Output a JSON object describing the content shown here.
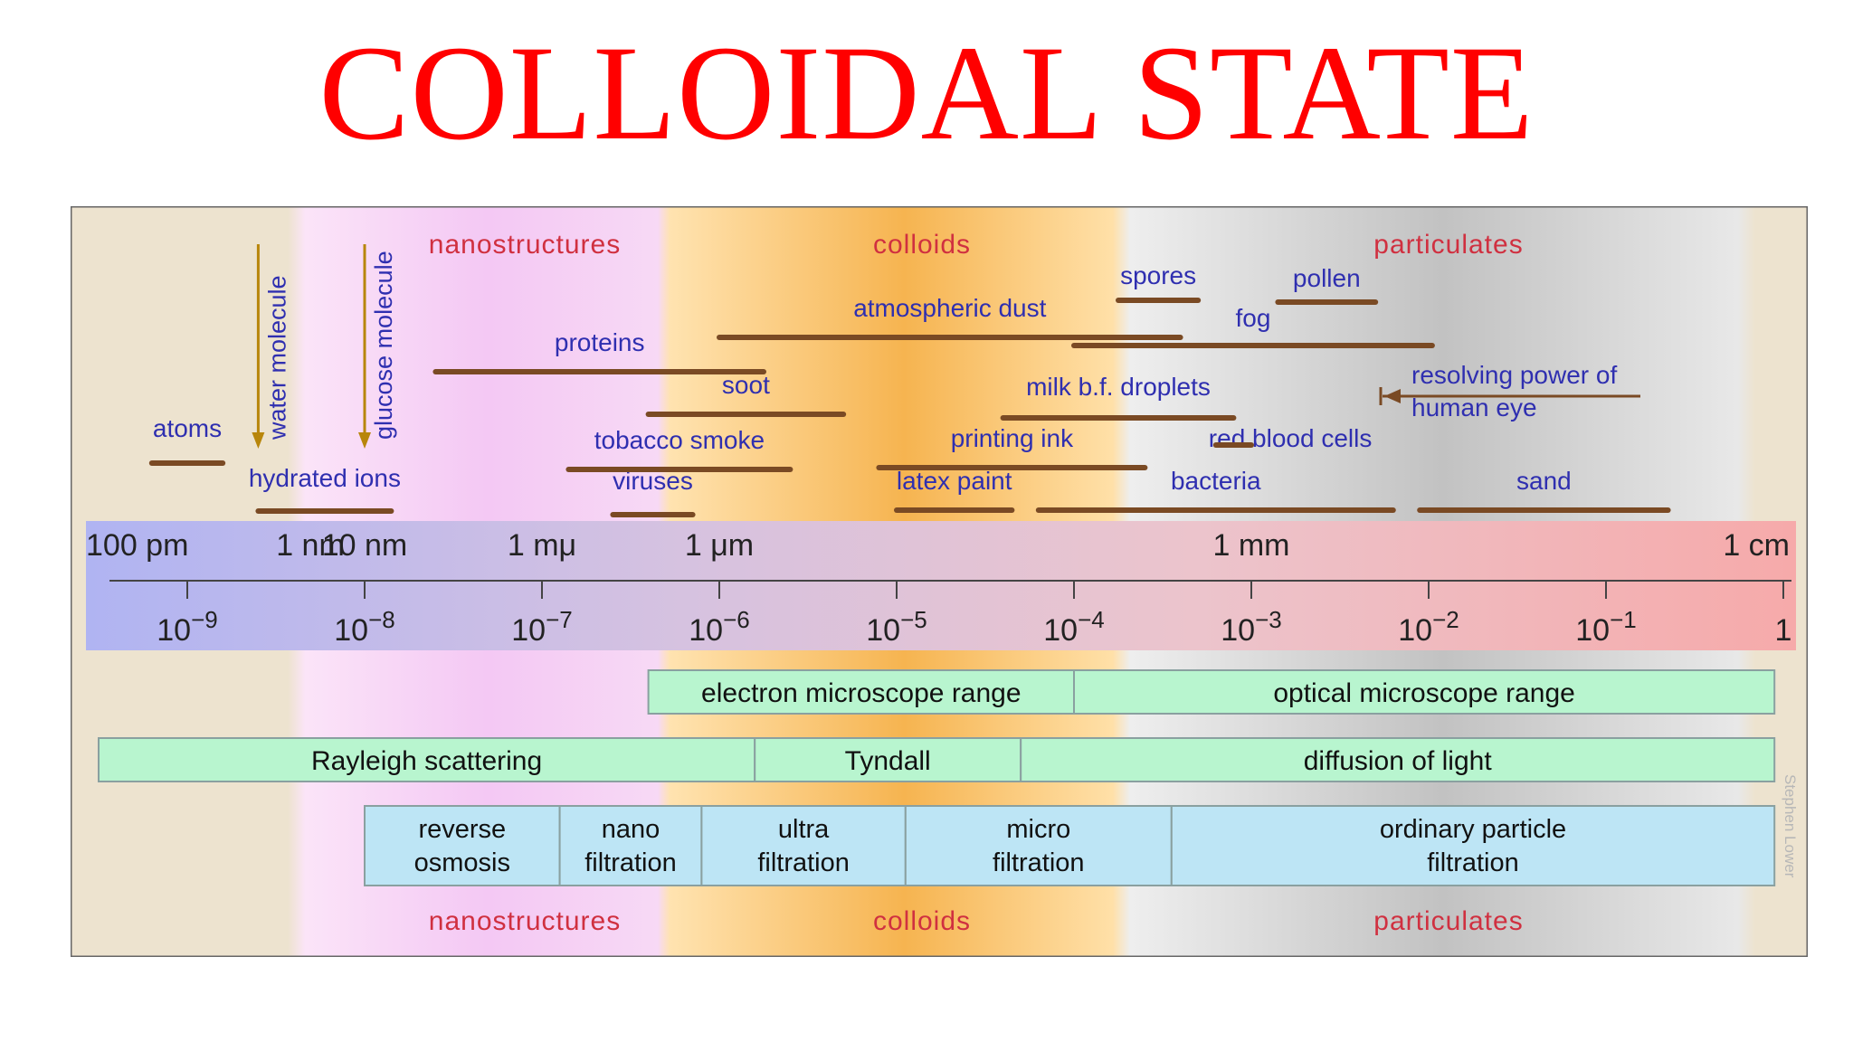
{
  "title": "COLLOIDAL STATE",
  "regions": {
    "nano": "nanostructures",
    "colloids": "colloids",
    "particulates": "particulates"
  },
  "credit": "Stephen Lower",
  "colors": {
    "title": "#ff0000",
    "region_label": "#d03040",
    "item_label": "#2f2fb0",
    "bar": "#7a4a24",
    "arrow": "#b8860b",
    "green_box": "#b8f5cf",
    "blue_box": "#bde5f5"
  },
  "scale": {
    "units": [
      {
        "label": "100 pm",
        "exp": -10
      },
      {
        "label": "1 nm",
        "exp": -9
      },
      {
        "label": "10 nm",
        "exp": -8
      },
      {
        "label": "1 mμ",
        "exp": -7
      },
      {
        "label": "1 μm",
        "exp": -6
      },
      {
        "label": "1 mm",
        "exp": -3
      },
      {
        "label": "1 cm",
        "exp": -2
      }
    ],
    "ticks": [
      {
        "base": "10",
        "sup": "−9",
        "exp": -9
      },
      {
        "base": "10",
        "sup": "−8",
        "exp": -8
      },
      {
        "base": "10",
        "sup": "−7",
        "exp": -7
      },
      {
        "base": "10",
        "sup": "−6",
        "exp": -6
      },
      {
        "base": "10",
        "sup": "−5",
        "exp": -5
      },
      {
        "base": "10",
        "sup": "−4",
        "exp": -4
      },
      {
        "base": "10",
        "sup": "−3",
        "exp": -3
      },
      {
        "base": "10",
        "sup": "−2",
        "exp": -2
      },
      {
        "base": "10",
        "sup": "−1",
        "exp": -1
      },
      {
        "base": "1",
        "sup": "",
        "exp": 0
      }
    ]
  },
  "items": [
    {
      "label": "atoms",
      "from": -9.2,
      "to": -8.8
    },
    {
      "label": "hydrated ions",
      "from": -8.6,
      "to": -7.85
    },
    {
      "label": "proteins",
      "from": -7.6,
      "to": -5.75
    },
    {
      "label": "viruses",
      "from": -6.6,
      "to": -6.15
    },
    {
      "label": "tobacco smoke",
      "from": -6.85,
      "to": -5.6
    },
    {
      "label": "soot",
      "from": -6.4,
      "to": -5.3
    },
    {
      "label": "atmospheric dust",
      "from": -6.0,
      "to": -3.4
    },
    {
      "label": "milk b.f. droplets",
      "from": -4.4,
      "to": -3.1
    },
    {
      "label": "printing ink",
      "from": -5.1,
      "to": -3.6
    },
    {
      "label": "latex paint",
      "from": -5.0,
      "to": -4.35
    },
    {
      "label": "bacteria",
      "from": -4.2,
      "to": -2.2
    },
    {
      "label": "red blood cells",
      "from": -3.2,
      "to": -3.0
    },
    {
      "label": "spores",
      "from": -3.75,
      "to": -3.3
    },
    {
      "label": "pollen",
      "from": -2.85,
      "to": -2.3
    },
    {
      "label": "fog",
      "from": -4.0,
      "to": -1.98
    },
    {
      "label": "sand",
      "from": -2.05,
      "to": -0.65
    }
  ],
  "resolving": {
    "line1": "resolving power of",
    "line2": "human eye"
  },
  "molecules": [
    {
      "label": "water molecule",
      "exp": -8.6
    },
    {
      "label": "glucose molecule",
      "exp": -8.0
    }
  ],
  "ranges": [
    {
      "row": "microscopes",
      "boxes": [
        {
          "label": "electron microscope range",
          "from": -6.4,
          "to": -4.0
        },
        {
          "label": "optical microscope range",
          "from": -4.0,
          "to": -0.05
        }
      ]
    },
    {
      "row": "scattering",
      "boxes": [
        {
          "label": "Rayleigh scattering",
          "from": -9.5,
          "to": -5.8
        },
        {
          "label": "Tyndall",
          "from": -5.8,
          "to": -4.3
        },
        {
          "label": "diffusion of light",
          "from": -4.3,
          "to": -0.05
        }
      ]
    },
    {
      "row": "filtration",
      "boxes": [
        {
          "line1": "reverse",
          "line2": "osmosis",
          "from": -8.0,
          "to": -6.9
        },
        {
          "line1": "nano",
          "line2": "filtration",
          "from": -6.9,
          "to": -6.1
        },
        {
          "line1": "ultra",
          "line2": "filtration",
          "from": -6.1,
          "to": -4.95
        },
        {
          "line1": "micro",
          "line2": "filtration",
          "from": -4.95,
          "to": -3.45
        },
        {
          "line1": "ordinary particle",
          "line2": "filtration",
          "from": -3.45,
          "to": -0.05
        }
      ]
    }
  ]
}
